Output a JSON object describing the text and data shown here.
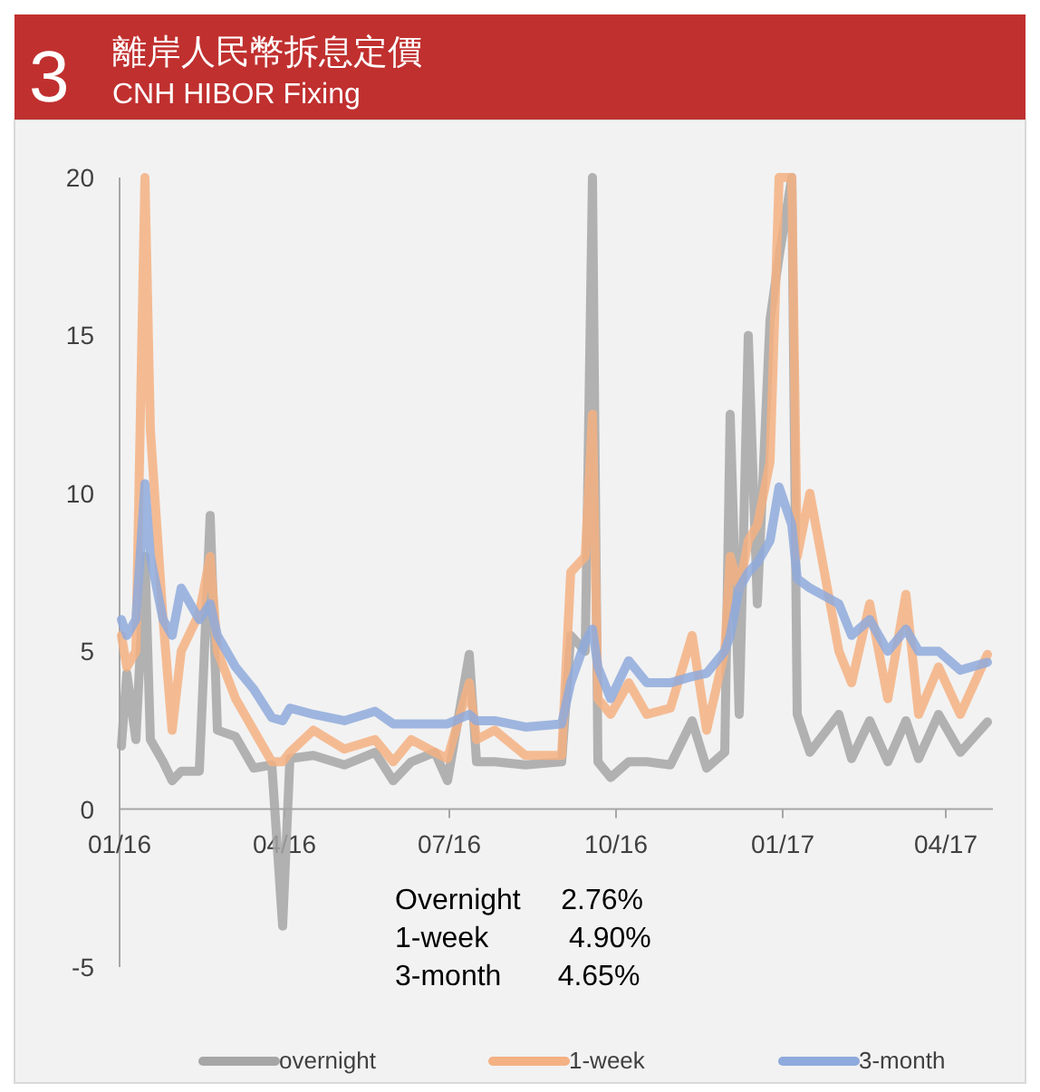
{
  "chart_data": {
    "type": "line",
    "title": "離岸人民幣拆息定價",
    "subtitle": "CNH HIBOR Fixing",
    "annotations": [
      "3",
      "Overnight     2.76%",
      "1-week          4.90%",
      "3-month       4.65%"
    ],
    "x": [
      "2016-01-02",
      "2016-01-05",
      "2016-01-10",
      "2016-01-15",
      "2016-01-18",
      "2016-01-25",
      "2016-01-30",
      "2016-02-04",
      "2016-02-14",
      "2016-02-20",
      "2016-02-24",
      "2016-03-05",
      "2016-03-15",
      "2016-03-25",
      "2016-03-31",
      "2016-04-04",
      "2016-04-17",
      "2016-05-04",
      "2016-05-21",
      "2016-05-31",
      "2016-06-10",
      "2016-06-23",
      "2016-06-30",
      "2016-07-12",
      "2016-07-16",
      "2016-07-26",
      "2016-08-12",
      "2016-09-01",
      "2016-09-06",
      "2016-09-14",
      "2016-09-18",
      "2016-09-21",
      "2016-09-28",
      "2016-10-08",
      "2016-10-18",
      "2016-10-31",
      "2016-11-12",
      "2016-11-20",
      "2016-11-30",
      "2016-12-03",
      "2016-12-08",
      "2016-12-13",
      "2016-12-18",
      "2016-12-25",
      "2016-12-30",
      "2017-01-06",
      "2017-01-09",
      "2017-01-16",
      "2017-02-01",
      "2017-02-08",
      "2017-02-18",
      "2017-02-28",
      "2017-03-10",
      "2017-03-17",
      "2017-03-28",
      "2017-04-09",
      "2017-04-24"
    ],
    "series": [
      {
        "name": "overnight",
        "color": "#a6a6a6",
        "values": [
          2.0,
          4.3,
          2.2,
          8.0,
          2.2,
          1.5,
          0.9,
          1.2,
          1.2,
          9.3,
          2.5,
          2.3,
          1.3,
          1.4,
          -3.7,
          1.6,
          1.7,
          1.4,
          1.8,
          0.9,
          1.5,
          1.8,
          0.9,
          4.9,
          1.5,
          1.5,
          1.4,
          1.5,
          5.5,
          5.0,
          20,
          1.5,
          1.0,
          1.5,
          1.5,
          1.4,
          2.8,
          1.3,
          1.8,
          12.5,
          3.0,
          15.0,
          6.5,
          15.5,
          17.5,
          20,
          3.0,
          1.8,
          3.0,
          1.6,
          2.8,
          1.5,
          2.8,
          1.6,
          3.0,
          1.8,
          2.76
        ]
      },
      {
        "name": "1-week",
        "color": "#f4b183",
        "values": [
          5.5,
          4.5,
          5.0,
          20,
          12,
          6,
          2.5,
          5.0,
          6.2,
          8.0,
          5.0,
          3.5,
          2.5,
          1.5,
          1.5,
          1.8,
          2.5,
          1.9,
          2.2,
          1.5,
          2.2,
          1.8,
          1.6,
          4.0,
          2.2,
          2.5,
          1.7,
          1.7,
          7.5,
          8,
          12.5,
          3.5,
          3.0,
          4.0,
          3.0,
          3.2,
          5.5,
          2.5,
          5.0,
          8.0,
          7.0,
          8.5,
          9.0,
          11,
          20,
          20,
          8.0,
          10.0,
          5.0,
          4.0,
          6.5,
          3.5,
          6.8,
          3.0,
          4.5,
          3.0,
          4.9
        ]
      },
      {
        "name": "3-month",
        "color": "#8faadc",
        "values": [
          6.0,
          5.5,
          6.0,
          10.3,
          8.0,
          6.0,
          5.5,
          7.0,
          6.0,
          6.5,
          5.5,
          4.5,
          3.8,
          2.9,
          2.8,
          3.2,
          3.0,
          2.8,
          3.1,
          2.7,
          2.7,
          2.7,
          2.7,
          3.0,
          2.8,
          2.8,
          2.6,
          2.7,
          4.0,
          5.3,
          5.7,
          4.5,
          3.5,
          4.7,
          4.0,
          4.0,
          4.2,
          4.3,
          5.0,
          5.5,
          7.0,
          7.5,
          7.8,
          8.5,
          10.2,
          9.0,
          7.3,
          7.0,
          6.5,
          5.5,
          6.0,
          5.0,
          5.7,
          5.0,
          5.0,
          4.4,
          4.65
        ]
      }
    ],
    "xlim": [
      "2016-01-01",
      "2017-04-27"
    ],
    "xticks": [
      {
        "value": "2016-01-01",
        "label": "01/16"
      },
      {
        "value": "2016-04-01",
        "label": "04/16"
      },
      {
        "value": "2016-07-01",
        "label": "07/16"
      },
      {
        "value": "2016-10-01",
        "label": "10/16"
      },
      {
        "value": "2017-01-01",
        "label": "01/17"
      },
      {
        "value": "2017-04-01",
        "label": "04/17"
      }
    ],
    "ylim": [
      -5,
      20
    ],
    "yticks": [
      -5,
      0,
      5,
      10,
      15,
      20
    ],
    "legend": "bottom"
  }
}
